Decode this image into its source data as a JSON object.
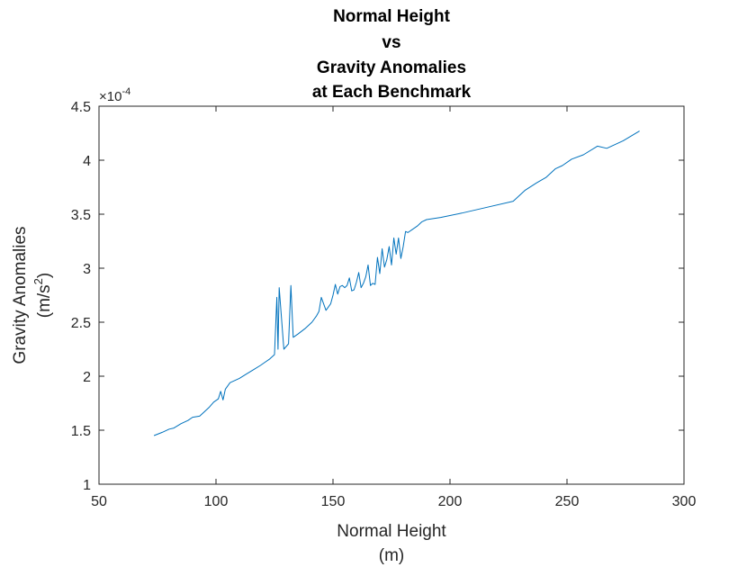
{
  "chart_data": {
    "type": "line",
    "title_lines": [
      "Normal Height",
      "vs",
      "Gravity Anomalies",
      "at Each Benchmark"
    ],
    "xlabel_lines": [
      "Normal Height",
      "(m)"
    ],
    "ylabel_lines": [
      "Gravity Anomalies",
      "(m/s",
      "2",
      ")"
    ],
    "exponent": {
      "base": "×10",
      "power": "-4"
    },
    "xlim": [
      50,
      300
    ],
    "ylim": [
      1,
      4.5
    ],
    "xticks": [
      50,
      100,
      150,
      200,
      250,
      300
    ],
    "yticks": [
      1,
      1.5,
      2,
      2.5,
      3,
      3.5,
      4,
      4.5
    ],
    "xtick_labels": [
      "50",
      "100",
      "150",
      "200",
      "250",
      "300"
    ],
    "ytick_labels": [
      "1",
      "1.5",
      "2",
      "2.5",
      "3",
      "3.5",
      "4",
      "4.5"
    ],
    "grid": false,
    "line_color": "#0072bd",
    "series": [
      {
        "x": [
          73.5,
          77,
          80,
          82,
          85,
          88,
          90,
          93,
          95,
          97,
          99,
          101,
          102,
          103,
          104,
          106,
          108,
          110,
          113,
          116,
          119,
          121,
          123,
          124,
          125,
          126,
          126.5,
          127,
          129,
          131,
          132,
          133,
          135,
          138,
          141,
          143,
          144,
          145,
          147,
          149,
          150,
          151,
          152,
          153,
          154,
          155,
          156,
          157,
          158,
          159,
          160,
          161,
          162,
          163,
          164,
          165,
          166,
          167,
          168,
          169,
          170,
          171,
          172,
          173,
          174,
          175,
          176,
          177,
          178,
          179,
          180,
          181,
          182,
          184,
          186,
          188,
          190,
          196,
          205,
          215,
          227,
          232,
          237,
          241,
          245,
          248,
          252,
          257,
          263,
          267,
          274,
          281
        ],
        "y": [
          1.45,
          1.48,
          1.51,
          1.52,
          1.56,
          1.59,
          1.62,
          1.63,
          1.67,
          1.71,
          1.76,
          1.79,
          1.86,
          1.78,
          1.88,
          1.94,
          1.96,
          1.98,
          2.02,
          2.06,
          2.1,
          2.13,
          2.16,
          2.18,
          2.2,
          2.73,
          2.25,
          2.82,
          2.25,
          2.3,
          2.84,
          2.36,
          2.39,
          2.44,
          2.5,
          2.56,
          2.6,
          2.73,
          2.61,
          2.67,
          2.75,
          2.85,
          2.76,
          2.83,
          2.84,
          2.82,
          2.84,
          2.91,
          2.79,
          2.8,
          2.87,
          2.96,
          2.82,
          2.86,
          2.92,
          3.03,
          2.84,
          2.86,
          2.85,
          3.1,
          2.95,
          3.18,
          3.01,
          3.08,
          3.2,
          3.03,
          3.28,
          3.13,
          3.28,
          3.09,
          3.2,
          3.34,
          3.33,
          3.36,
          3.39,
          3.43,
          3.45,
          3.47,
          3.51,
          3.56,
          3.62,
          3.72,
          3.79,
          3.84,
          3.92,
          3.95,
          4.01,
          4.05,
          4.13,
          4.11,
          4.18,
          4.27
        ]
      }
    ]
  }
}
